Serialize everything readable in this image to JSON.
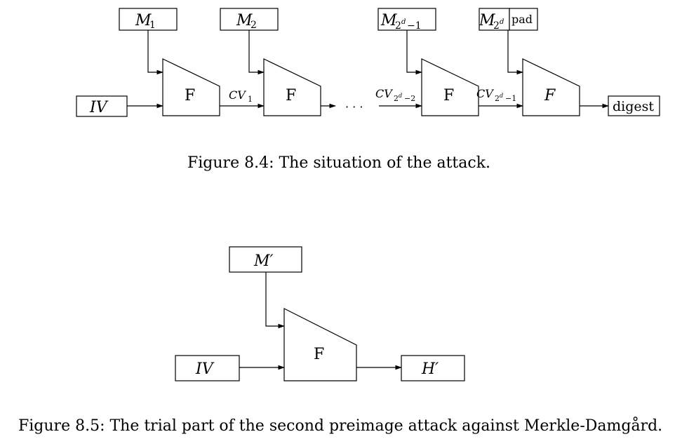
{
  "figure1": {
    "labels": {
      "m1": "M",
      "m1_sub": "1",
      "m2": "M",
      "m2_sub": "2",
      "m3": "M",
      "m3_sub": "2",
      "m3_sup": "d",
      "m3_tail": "−1",
      "m4": "M",
      "m4_sub": "2",
      "m4_sup": "d",
      "pad": "pad",
      "iv": "IV",
      "f1": "F",
      "f2": "F",
      "f3": "F",
      "f4": "F",
      "cv1": "CV",
      "cv1_sub": "1",
      "cv2": "CV",
      "cv2_sub": "2",
      "cv2_sup": "d",
      "cv2_tail": "−2",
      "cv3": "CV",
      "cv3_sub": "2",
      "cv3_sup": "d",
      "cv3_tail": "−1",
      "dots": "· · ·",
      "digest": "digest"
    },
    "caption": "Figure 8.4: The situation of the attack."
  },
  "figure2": {
    "labels": {
      "mprime": "M′",
      "iv": "IV",
      "f": "F",
      "hprime": "H′"
    },
    "caption": "Figure 8.5: The trial part of the second preimage attack against Merkle-Damgård."
  }
}
